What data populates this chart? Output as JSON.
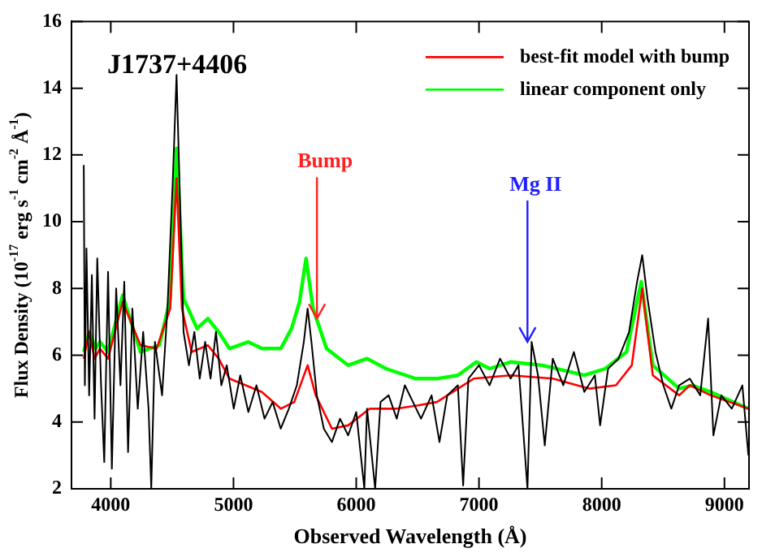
{
  "chart_data": {
    "type": "line",
    "title": "J1737+4406",
    "xlabel": "Observed Wavelength (Å)",
    "ylabel": "Flux Density (10$^{-17}$ erg s$^{-1}$ cm$^{-2}$ Å$^{-1}$)",
    "xlim": [
      3680,
      9200
    ],
    "xticks": [
      4000,
      5000,
      6000,
      7000,
      8000,
      9000
    ],
    "ylim": [
      2,
      16
    ],
    "yticks": [
      2,
      4,
      6,
      8,
      10,
      12,
      14,
      16
    ],
    "legend": "top right",
    "marker": "none",
    "line_style": "solid",
    "annotations": [
      {
        "text": "Bump",
        "x": 5680,
        "y": 7.1
      },
      {
        "text": "Mg II",
        "x": 7395,
        "y": 6.4
      }
    ],
    "series": [
      {
        "color": "#000000",
        "x": [
          3780,
          3789,
          3802,
          3824,
          3846,
          3868,
          3890,
          3921,
          3947,
          3978,
          4009,
          4044,
          4079,
          4110,
          4141,
          4176,
          4220,
          4264,
          4308,
          4330,
          4360,
          4418,
          4462,
          4505,
          4536,
          4563,
          4593,
          4637,
          4681,
          4725,
          4769,
          4813,
          4857,
          4901,
          4945,
          5002,
          5055,
          5121,
          5187,
          5253,
          5319,
          5385,
          5451,
          5516,
          5573,
          5604,
          5635,
          5679,
          5736,
          5802,
          5868,
          5934,
          6000,
          6066,
          6088,
          6154,
          6198,
          6264,
          6330,
          6396,
          6528,
          6614,
          6678,
          6742,
          6828,
          6871,
          6914,
          7000,
          7086,
          7172,
          7258,
          7322,
          7395,
          7429,
          7481,
          7536,
          7601,
          7687,
          7773,
          7858,
          7944,
          7987,
          8052,
          8137,
          8223,
          8288,
          8330,
          8373,
          8438,
          8502,
          8567,
          8631,
          8717,
          8803,
          8867,
          8910,
          8974,
          9060,
          9146,
          9195
        ],
        "values": [
          11.7,
          5.1,
          9.2,
          4.8,
          8.4,
          4.1,
          8.9,
          5.1,
          2.8,
          8.5,
          2.6,
          8.0,
          5.1,
          8.2,
          3.1,
          7.4,
          4.4,
          6.7,
          4.4,
          2.0,
          6.4,
          4.8,
          7.4,
          11.2,
          14.4,
          10.8,
          6.7,
          5.7,
          6.7,
          5.3,
          6.4,
          5.3,
          6.7,
          5.1,
          5.7,
          4.4,
          5.4,
          4.3,
          5.1,
          4.1,
          4.6,
          3.8,
          4.4,
          5.1,
          6.4,
          7.4,
          6.4,
          4.8,
          3.8,
          3.4,
          4.1,
          3.6,
          4.3,
          2.0,
          4.4,
          2.0,
          4.6,
          4.8,
          4.1,
          5.1,
          4.1,
          4.8,
          3.4,
          4.8,
          5.1,
          2.1,
          5.3,
          5.7,
          5.1,
          5.9,
          5.3,
          5.7,
          2.0,
          6.4,
          5.4,
          3.3,
          5.9,
          5.1,
          6.1,
          4.9,
          5.4,
          3.9,
          5.6,
          5.9,
          6.7,
          8.2,
          9.0,
          7.7,
          6.1,
          5.1,
          4.4,
          5.1,
          5.3,
          4.8,
          7.1,
          3.6,
          4.8,
          4.4,
          5.1,
          3.0
        ]
      },
      {
        "name": "best-fit model with bump",
        "color": "#ff0000",
        "x": [
          3780,
          3824,
          3868,
          3912,
          3978,
          4097,
          4242,
          4374,
          4484,
          4536,
          4580,
          4659,
          4791,
          4879,
          4967,
          5099,
          5231,
          5385,
          5495,
          5604,
          5670,
          5802,
          5934,
          6110,
          6330,
          6505,
          6657,
          6957,
          7258,
          7601,
          7901,
          8116,
          8245,
          8330,
          8416,
          8631,
          8717,
          8888,
          9195
        ],
        "values": [
          5.9,
          6.7,
          5.9,
          6.2,
          5.9,
          7.6,
          6.3,
          6.2,
          7.4,
          11.3,
          7.4,
          6.1,
          6.3,
          5.9,
          5.3,
          5.1,
          4.9,
          4.4,
          4.6,
          5.7,
          4.8,
          3.8,
          3.9,
          4.4,
          4.4,
          4.5,
          4.6,
          5.3,
          5.4,
          5.3,
          5.0,
          5.1,
          5.7,
          8.0,
          5.4,
          4.8,
          5.1,
          4.8,
          4.4
        ]
      },
      {
        "name": "linear component only",
        "color": "#00ff00",
        "x": [
          3780,
          3824,
          3877,
          3912,
          3978,
          4097,
          4242,
          4396,
          4484,
          4536,
          4593,
          4703,
          4791,
          4879,
          4967,
          5121,
          5231,
          5385,
          5473,
          5538,
          5591,
          5648,
          5758,
          5934,
          6088,
          6242,
          6484,
          6657,
          6828,
          6979,
          7086,
          7258,
          7515,
          7858,
          8030,
          8202,
          8322,
          8416,
          8631,
          8738,
          8888,
          9195
        ],
        "values": [
          6.1,
          6.7,
          6.2,
          6.4,
          6.1,
          7.8,
          6.1,
          6.3,
          7.7,
          12.2,
          7.7,
          6.8,
          7.1,
          6.7,
          6.2,
          6.4,
          6.2,
          6.2,
          6.8,
          7.6,
          8.9,
          7.4,
          6.2,
          5.7,
          5.9,
          5.6,
          5.3,
          5.3,
          5.4,
          5.8,
          5.6,
          5.8,
          5.7,
          5.4,
          5.6,
          6.1,
          8.2,
          5.7,
          5.0,
          5.1,
          4.9,
          4.4
        ]
      }
    ]
  }
}
